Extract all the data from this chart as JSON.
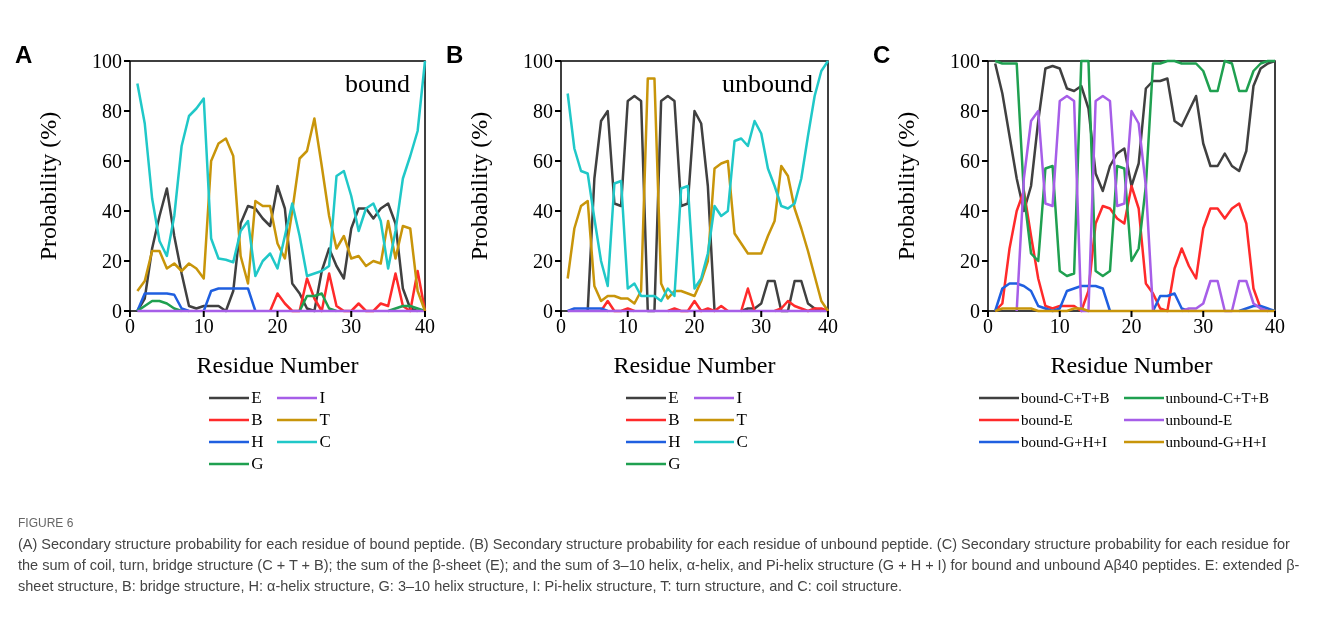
{
  "chart_data": [
    {
      "type": "line",
      "title": "A",
      "xlabel": "Residue Number",
      "ylabel": "Probability (%)",
      "annotations": [
        "bound"
      ],
      "xlim": [
        0,
        40
      ],
      "xticks": [
        0,
        10,
        20,
        30,
        40
      ],
      "ylim": [
        0,
        100
      ],
      "yticks": [
        0,
        20,
        40,
        60,
        80,
        100
      ],
      "legend": "bottom",
      "marker": "none",
      "line_style": "solid",
      "x": [
        1,
        2,
        3,
        4,
        5,
        6,
        7,
        8,
        9,
        10,
        11,
        12,
        13,
        14,
        15,
        16,
        17,
        18,
        19,
        20,
        21,
        22,
        23,
        24,
        25,
        26,
        27,
        28,
        29,
        30,
        31,
        32,
        33,
        34,
        35,
        36,
        37,
        38,
        39,
        40
      ],
      "series": [
        {
          "name": "E",
          "color": "#404040",
          "values": [
            0,
            5,
            25,
            38,
            49,
            30,
            15,
            2,
            1,
            2,
            2,
            2,
            0,
            8,
            35,
            42,
            41,
            37,
            34,
            50,
            41,
            11,
            7,
            1,
            0,
            16,
            25,
            18,
            13,
            33,
            41,
            41,
            37,
            41,
            43,
            35,
            9,
            1,
            0,
            null
          ]
        },
        {
          "name": "B",
          "color": "#ff2a2a",
          "values": [
            null,
            null,
            null,
            null,
            null,
            null,
            null,
            null,
            null,
            null,
            null,
            null,
            null,
            null,
            null,
            null,
            null,
            null,
            0,
            7,
            3,
            0,
            0,
            13,
            5,
            0,
            15,
            2,
            0,
            0,
            3,
            0,
            0,
            3,
            2,
            15,
            2,
            0,
            16,
            0
          ]
        },
        {
          "name": "H",
          "color": "#1f5fe0",
          "values": [
            0,
            7,
            7,
            7,
            7,
            6.5,
            1,
            0,
            null,
            0,
            8,
            9,
            9,
            9,
            9,
            9,
            0,
            null,
            null,
            null,
            null,
            null,
            null,
            null,
            null,
            null,
            null,
            null,
            null,
            null,
            null,
            null,
            null,
            null,
            null,
            null,
            null,
            null,
            null,
            null
          ]
        },
        {
          "name": "G",
          "color": "#1fa050",
          "values": [
            0,
            2,
            4,
            4,
            3,
            1,
            0,
            null,
            null,
            null,
            null,
            null,
            null,
            null,
            null,
            null,
            null,
            null,
            null,
            null,
            null,
            null,
            0,
            6,
            6,
            7,
            1,
            0,
            null,
            null,
            null,
            null,
            null,
            null,
            0,
            1,
            2,
            2,
            1,
            0
          ]
        },
        {
          "name": "I",
          "color": "#a65ee8",
          "values": [
            0,
            0,
            0,
            0,
            0,
            0,
            0,
            0,
            0,
            0,
            0,
            0,
            0,
            0,
            0,
            0,
            0,
            0,
            0,
            0,
            0,
            0,
            0,
            0,
            0,
            0,
            0,
            0,
            0,
            0,
            0,
            0,
            0,
            0,
            0,
            0,
            0,
            0,
            0,
            0
          ]
        },
        {
          "name": "T",
          "color": "#c8950a",
          "values": [
            8,
            12,
            24,
            24,
            17,
            19,
            16,
            19,
            17,
            13,
            60,
            67,
            69,
            62,
            22,
            11,
            44,
            42,
            42,
            27,
            21,
            40,
            61,
            64,
            77,
            58,
            38,
            25,
            30,
            21,
            22,
            18,
            20,
            19,
            36,
            21,
            34,
            33,
            8,
            0
          ]
        },
        {
          "name": "C",
          "color": "#20c8c8",
          "values": [
            91,
            75,
            45,
            28,
            22,
            38,
            66,
            78,
            81,
            85,
            29,
            21,
            20.5,
            19.5,
            32,
            36,
            14,
            20,
            23,
            17,
            30,
            43,
            30,
            14,
            15,
            16,
            18,
            54,
            56,
            46,
            32,
            41,
            43,
            36,
            17,
            32,
            53,
            62,
            72,
            100
          ]
        }
      ]
    },
    {
      "type": "line",
      "title": "B",
      "xlabel": "Residue Number",
      "ylabel": "Probability (%)",
      "annotations": [
        "unbound"
      ],
      "xlim": [
        0,
        40
      ],
      "xticks": [
        0,
        10,
        20,
        30,
        40
      ],
      "ylim": [
        0,
        100
      ],
      "yticks": [
        0,
        20,
        40,
        60,
        80,
        100
      ],
      "legend": "bottom",
      "marker": "none",
      "line_style": "solid",
      "x": [
        1,
        2,
        3,
        4,
        5,
        6,
        7,
        8,
        9,
        10,
        11,
        12,
        13,
        14,
        15,
        16,
        17,
        18,
        19,
        20,
        21,
        22,
        23,
        24,
        25,
        26,
        27,
        28,
        29,
        30,
        31,
        32,
        33,
        34,
        35,
        36,
        37,
        38,
        39,
        40
      ],
      "series": [
        {
          "name": "E",
          "color": "#404040",
          "values": [
            null,
            null,
            null,
            0,
            53,
            76,
            80,
            43,
            42,
            84,
            86,
            84,
            0,
            0,
            84,
            86,
            84,
            42,
            43,
            80,
            75,
            50,
            0,
            null,
            null,
            null,
            0,
            1,
            1,
            3,
            12,
            12,
            0,
            0,
            12,
            12,
            3,
            1,
            0,
            null
          ]
        },
        {
          "name": "B",
          "color": "#ff2a2a",
          "values": [
            null,
            null,
            null,
            null,
            null,
            0,
            4,
            0,
            0,
            1,
            0,
            null,
            null,
            null,
            null,
            0,
            1,
            0,
            0,
            4,
            0,
            1,
            0,
            2,
            0,
            null,
            0,
            9,
            0,
            null,
            null,
            0,
            1,
            4,
            2,
            1,
            0,
            1,
            1,
            0
          ]
        },
        {
          "name": "H",
          "color": "#1f5fe0",
          "values": [
            0,
            1,
            1,
            1,
            1,
            1,
            0,
            null,
            null,
            null,
            null,
            null,
            null,
            null,
            null,
            null,
            null,
            null,
            null,
            null,
            null,
            null,
            null,
            null,
            null,
            null,
            null,
            null,
            null,
            null,
            null,
            null,
            null,
            null,
            null,
            null,
            null,
            null,
            null,
            null
          ]
        },
        {
          "name": "G",
          "color": "#1fa050",
          "values": [
            null,
            null,
            null,
            null,
            null,
            null,
            null,
            null,
            null,
            null,
            null,
            null,
            null,
            null,
            null,
            null,
            null,
            null,
            null,
            null,
            null,
            null,
            null,
            null,
            null,
            null,
            null,
            null,
            null,
            null,
            null,
            null,
            null,
            null,
            null,
            null,
            null,
            null,
            null,
            null
          ]
        },
        {
          "name": "I",
          "color": "#a65ee8",
          "values": [
            0,
            0,
            0,
            0,
            0,
            0,
            0,
            0,
            0,
            0,
            0,
            0,
            0,
            0,
            0,
            0,
            0,
            0,
            0,
            0,
            0,
            0,
            0,
            0,
            0,
            0,
            0,
            0,
            0,
            0,
            0,
            0,
            0,
            0,
            0,
            0,
            0,
            0,
            0,
            0
          ]
        },
        {
          "name": "T",
          "color": "#c8950a",
          "values": [
            13,
            33,
            42,
            44,
            10,
            4,
            6,
            6,
            5,
            5,
            3,
            8,
            93,
            93,
            11,
            5,
            8,
            8,
            7,
            6,
            12,
            20,
            57,
            59,
            60,
            31,
            27,
            23,
            23,
            23,
            30,
            36,
            58,
            54,
            41,
            33,
            24,
            14,
            4,
            0
          ]
        },
        {
          "name": "C",
          "color": "#20c8c8",
          "values": [
            87,
            65,
            56,
            55,
            37,
            20,
            10,
            51,
            52,
            9,
            11,
            6,
            6,
            6,
            4,
            9,
            6,
            49,
            50,
            9,
            13,
            23,
            42,
            38,
            40,
            68,
            69,
            66,
            76,
            71,
            57,
            50,
            42,
            41,
            43,
            53,
            70,
            86,
            96,
            100
          ]
        }
      ]
    },
    {
      "type": "line",
      "title": "C",
      "xlabel": "Residue Number",
      "ylabel": "Probability (%)",
      "annotations": [
        "FIGURE 6",
        "(A) Secondary structure probability for each residue of bound peptide. (B) Secondary structure probability for each residue of unbound peptide. (C) Secondary structure probability for each residue for the sum of coil, turn, bridge structure (C + T + B); the sum of the β-sheet (E); and the sum of 3–10 helix, α-helix, and Pi-helix structure (G + H + I) for bound and unbound Aβ40 peptides. E: extended β-sheet structure, B: bridge structure, H: α-helix structure, G: 3–10 helix structure, I: Pi-helix structure, T: turn structure, and C: coil structure."
      ],
      "xlim": [
        0,
        40
      ],
      "xticks": [
        0,
        10,
        20,
        30,
        40
      ],
      "ylim": [
        0,
        100
      ],
      "yticks": [
        0,
        20,
        40,
        60,
        80,
        100
      ],
      "legend": "bottom",
      "marker": "none",
      "line_style": "solid",
      "x": [
        1,
        2,
        3,
        4,
        5,
        6,
        7,
        8,
        9,
        10,
        11,
        12,
        13,
        14,
        15,
        16,
        17,
        18,
        19,
        20,
        21,
        22,
        23,
        24,
        25,
        26,
        27,
        28,
        29,
        30,
        31,
        32,
        33,
        34,
        35,
        36,
        37,
        38,
        39,
        40
      ],
      "series": [
        {
          "name": "bound-C+T+B",
          "color": "#404040",
          "values": [
            99,
            87,
            70,
            53,
            40,
            50,
            76,
            97,
            98,
            97,
            89,
            88,
            90,
            81,
            55,
            48,
            58,
            63,
            65,
            50,
            59,
            89,
            92,
            92,
            93,
            76,
            74,
            80,
            86,
            67,
            58,
            58,
            63,
            58,
            56,
            64,
            90,
            97,
            99,
            100
          ]
        },
        {
          "name": "bound-E",
          "color": "#ff2a2a",
          "values": [
            0,
            3,
            25,
            40,
            48,
            30,
            13,
            2,
            1,
            2,
            2,
            2,
            0,
            8,
            35,
            42,
            41,
            37,
            35,
            50,
            41,
            11,
            7,
            1,
            0,
            17,
            25,
            18,
            13,
            33,
            41,
            41,
            37,
            41,
            43,
            35,
            9,
            1,
            0,
            null
          ]
        },
        {
          "name": "bound-G+H+I",
          "color": "#1f5fe0",
          "values": [
            0,
            9,
            11,
            11,
            10,
            8,
            2,
            1,
            0,
            1,
            8,
            9,
            10,
            10,
            10,
            9,
            0,
            null,
            null,
            null,
            null,
            null,
            0,
            6,
            6,
            7,
            1,
            0,
            null,
            null,
            null,
            null,
            null,
            null,
            0,
            1,
            2,
            2,
            1,
            0
          ]
        },
        {
          "name": "unbound-C+T+B",
          "color": "#1fa050",
          "values": [
            100,
            99,
            99,
            99,
            47,
            23,
            20,
            57,
            58,
            16,
            14,
            15,
            100,
            100,
            16,
            14,
            16,
            58,
            57,
            20,
            25,
            50,
            99,
            99,
            100,
            100,
            99,
            99,
            99,
            96,
            88,
            88,
            100,
            99,
            88,
            88,
            96,
            99,
            100,
            100
          ]
        },
        {
          "name": "unbound-E",
          "color": "#a65ee8",
          "values": [
            null,
            null,
            null,
            0,
            53,
            76,
            80,
            43,
            42,
            84,
            86,
            84,
            0,
            0,
            84,
            86,
            84,
            42,
            43,
            80,
            75,
            50,
            0,
            null,
            null,
            null,
            0,
            1,
            1,
            3,
            12,
            12,
            0,
            0,
            12,
            12,
            3,
            1,
            0,
            null
          ]
        },
        {
          "name": "unbound-G+H+I",
          "color": "#c8950a",
          "values": [
            0,
            1,
            1,
            1,
            1,
            1,
            0,
            0,
            0,
            0,
            0,
            1,
            1,
            0,
            0,
            0,
            0,
            0,
            0,
            0,
            0,
            0,
            0,
            0,
            0,
            0,
            0,
            0,
            0,
            0,
            0,
            0,
            0,
            0,
            0,
            0,
            0,
            0,
            0,
            0
          ]
        }
      ]
    }
  ]
}
